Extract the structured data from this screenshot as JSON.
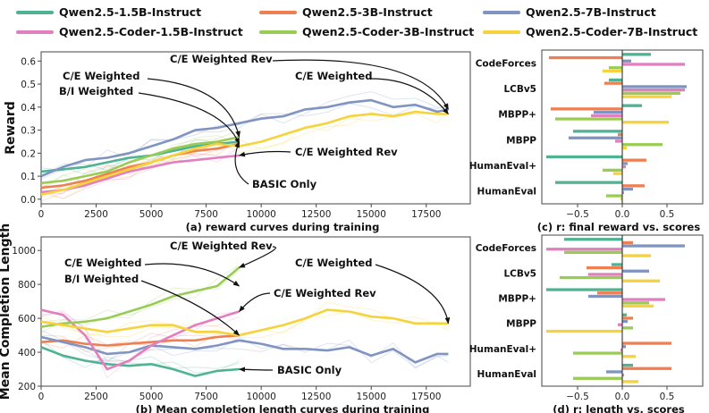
{
  "legend": [
    {
      "name": "Qwen2.5-1.5B-Instruct",
      "color": "#4fb393"
    },
    {
      "name": "Qwen2.5-3B-Instruct",
      "color": "#ee7f52"
    },
    {
      "name": "Qwen2.5-7B-Instruct",
      "color": "#8094c2"
    },
    {
      "name": "Qwen2.5-Coder-1.5B-Instruct",
      "color": "#e27fbf"
    },
    {
      "name": "Qwen2.5-Coder-3B-Instruct",
      "color": "#99cc55"
    },
    {
      "name": "Qwen2.5-Coder-7B-Instruct",
      "color": "#f6d23c"
    }
  ],
  "chart_data": [
    {
      "type": "line",
      "id": "reward",
      "caption": "(a) reward curves during training",
      "xlabel": "",
      "ylabel": "Reward",
      "xlim": [
        0,
        19500
      ],
      "ylim": [
        -0.02,
        0.64
      ],
      "xticks": [
        "0",
        "2500",
        "5000",
        "7500",
        "10000",
        "12500",
        "15000",
        "17500"
      ],
      "xtick_values": [
        0,
        2500,
        5000,
        7500,
        10000,
        12500,
        15000,
        17500
      ],
      "yticks": [
        "0.0",
        "0.1",
        "0.2",
        "0.3",
        "0.4",
        "0.5",
        "0.6"
      ],
      "ytick_values": [
        0,
        0.1,
        0.2,
        0.3,
        0.4,
        0.5,
        0.6
      ],
      "series": [
        {
          "name": "Qwen2.5-1.5B-Instruct (BASIC Only)",
          "color": "#4fb393",
          "x": [
            0,
            1000,
            2000,
            3000,
            4000,
            5000,
            6000,
            7000,
            8000,
            9000
          ],
          "y": [
            0.12,
            0.13,
            0.14,
            0.16,
            0.18,
            0.19,
            0.21,
            0.23,
            0.24,
            0.25
          ]
        },
        {
          "name": "Qwen2.5-3B-Instruct",
          "color": "#ee7f52",
          "x": [
            0,
            1000,
            2000,
            3000,
            4000,
            5000,
            6000,
            7000,
            8000,
            9000
          ],
          "y": [
            0.05,
            0.06,
            0.08,
            0.11,
            0.14,
            0.16,
            0.19,
            0.21,
            0.22,
            0.24
          ]
        },
        {
          "name": "Qwen2.5-7B-Instruct",
          "color": "#8094c2",
          "x": [
            0,
            1000,
            2000,
            3000,
            4000,
            5000,
            6000,
            7000,
            8000,
            9000,
            10000,
            11000,
            12000,
            13000,
            14000,
            15000,
            16000,
            17000,
            18000,
            18500
          ],
          "y": [
            0.1,
            0.14,
            0.17,
            0.18,
            0.2,
            0.23,
            0.26,
            0.3,
            0.31,
            0.33,
            0.35,
            0.36,
            0.39,
            0.4,
            0.42,
            0.43,
            0.4,
            0.41,
            0.38,
            0.39
          ]
        },
        {
          "name": "Qwen2.5-Coder-1.5B-Instruct",
          "color": "#e27fbf",
          "x": [
            0,
            1000,
            2000,
            3000,
            4000,
            5000,
            6000,
            7000,
            8000,
            9000
          ],
          "y": [
            0.03,
            0.04,
            0.06,
            0.09,
            0.12,
            0.14,
            0.16,
            0.17,
            0.18,
            0.19
          ]
        },
        {
          "name": "Qwen2.5-Coder-3B-Instruct",
          "color": "#99cc55",
          "x": [
            0,
            1000,
            2000,
            3000,
            4000,
            5000,
            6000,
            7000,
            8000,
            9000
          ],
          "y": [
            0.07,
            0.08,
            0.1,
            0.12,
            0.16,
            0.19,
            0.22,
            0.24,
            0.25,
            0.27
          ]
        },
        {
          "name": "Qwen2.5-Coder-7B-Instruct",
          "color": "#f6d23c",
          "x": [
            0,
            1000,
            2000,
            3000,
            4000,
            5000,
            6000,
            7000,
            8000,
            9000,
            10000,
            11000,
            12000,
            13000,
            14000,
            15000,
            16000,
            17000,
            18000,
            18500
          ],
          "y": [
            0.02,
            0.04,
            0.07,
            0.1,
            0.13,
            0.16,
            0.19,
            0.22,
            0.24,
            0.23,
            0.25,
            0.28,
            0.31,
            0.33,
            0.36,
            0.37,
            0.36,
            0.38,
            0.37,
            0.37
          ]
        }
      ],
      "annotations": [
        {
          "text": "C/E Weighted Rev",
          "target": [
            18500,
            0.39
          ]
        },
        {
          "text": "C/E Weighted",
          "target": [
            18500,
            0.37
          ]
        },
        {
          "text": "C/E Weighted",
          "target": [
            9000,
            0.27
          ]
        },
        {
          "text": "B/I Weighted",
          "target": [
            9000,
            0.24
          ]
        },
        {
          "text": "C/E Weighted Rev",
          "target": [
            9000,
            0.19
          ]
        },
        {
          "text": "BASIC Only",
          "target": [
            9000,
            0.25
          ]
        }
      ]
    },
    {
      "type": "line",
      "id": "length",
      "caption": "(b) Mean completion length curves during training",
      "xlabel": "",
      "ylabel": "Mean Completion Length",
      "xlim": [
        0,
        19500
      ],
      "ylim": [
        200,
        1080
      ],
      "xticks": [
        "0",
        "2500",
        "5000",
        "7500",
        "10000",
        "12500",
        "15000",
        "17500"
      ],
      "xtick_values": [
        0,
        2500,
        5000,
        7500,
        10000,
        12500,
        15000,
        17500
      ],
      "yticks": [
        "200",
        "400",
        "600",
        "800",
        "1000"
      ],
      "ytick_values": [
        200,
        400,
        600,
        800,
        1000
      ],
      "series": [
        {
          "name": "Qwen2.5-1.5B-Instruct (BASIC Only)",
          "color": "#4fb393",
          "x": [
            0,
            1000,
            2000,
            3000,
            4000,
            5000,
            6000,
            7000,
            8000,
            9000
          ],
          "y": [
            430,
            380,
            350,
            330,
            320,
            330,
            300,
            260,
            290,
            300
          ]
        },
        {
          "name": "Qwen2.5-3B-Instruct",
          "color": "#ee7f52",
          "x": [
            0,
            1000,
            2000,
            3000,
            4000,
            5000,
            6000,
            7000,
            8000,
            9000
          ],
          "y": [
            460,
            470,
            450,
            440,
            450,
            460,
            470,
            470,
            490,
            500
          ]
        },
        {
          "name": "Qwen2.5-7B-Instruct",
          "color": "#8094c2",
          "x": [
            0,
            1000,
            2000,
            3000,
            4000,
            5000,
            6000,
            7000,
            8000,
            9000,
            10000,
            11000,
            12000,
            13000,
            14000,
            15000,
            16000,
            17000,
            18000,
            18500
          ],
          "y": [
            490,
            460,
            430,
            390,
            400,
            440,
            430,
            420,
            440,
            470,
            450,
            420,
            420,
            410,
            430,
            380,
            420,
            340,
            390,
            390
          ]
        },
        {
          "name": "Qwen2.5-Coder-1.5B-Instruct",
          "color": "#e27fbf",
          "x": [
            0,
            1000,
            2000,
            3000,
            4000,
            5000,
            6000,
            7000,
            8000,
            9000
          ],
          "y": [
            650,
            620,
            500,
            300,
            350,
            440,
            500,
            560,
            600,
            640
          ]
        },
        {
          "name": "Qwen2.5-Coder-3B-Instruct",
          "color": "#99cc55",
          "x": [
            0,
            1000,
            2000,
            3000,
            4000,
            5000,
            6000,
            7000,
            8000,
            9000
          ],
          "y": [
            550,
            570,
            580,
            600,
            640,
            680,
            730,
            760,
            790,
            900
          ]
        },
        {
          "name": "Qwen2.5-Coder-7B-Instruct",
          "color": "#f6d23c",
          "x": [
            0,
            1000,
            2000,
            3000,
            4000,
            5000,
            6000,
            7000,
            8000,
            9000,
            10000,
            11000,
            12000,
            13000,
            14000,
            15000,
            16000,
            17000,
            18000,
            18500
          ],
          "y": [
            580,
            560,
            540,
            520,
            540,
            560,
            560,
            520,
            520,
            500,
            530,
            560,
            600,
            650,
            640,
            610,
            600,
            570,
            570,
            570
          ]
        }
      ],
      "annotations": [
        {
          "text": "C/E Weighted Rev",
          "target": [
            9000,
            900
          ]
        },
        {
          "text": "C/E Weighted",
          "target": [
            9000,
            790
          ]
        },
        {
          "text": "B/I Weighted",
          "target": [
            9000,
            500
          ]
        },
        {
          "text": "C/E Weighted Rev",
          "target": [
            9000,
            640
          ]
        },
        {
          "text": "C/E Weighted",
          "target": [
            18500,
            570
          ]
        },
        {
          "text": "BASIC Only",
          "target": [
            9000,
            300
          ]
        }
      ]
    },
    {
      "type": "bar",
      "orientation": "horizontal",
      "id": "corr-reward",
      "caption": "(c) r: final reward vs. scores",
      "xlim": [
        -0.9,
        0.9
      ],
      "xticks": [
        "−0.5",
        "0.0",
        "0.5"
      ],
      "xtick_values": [
        -0.5,
        0,
        0.5
      ],
      "categories": [
        "CodeForces",
        "LCBv5",
        "MBPP+",
        "MBPP",
        "HumanEval+",
        "HumanEval"
      ],
      "series": [
        {
          "name": "Qwen2.5-1.5B-Instruct",
          "color": "#4fb393",
          "values": [
            0.32,
            -0.15,
            0.22,
            -0.55,
            -0.85,
            -0.75
          ]
        },
        {
          "name": "Qwen2.5-3B-Instruct",
          "color": "#ee7f52",
          "values": [
            -0.82,
            -0.2,
            -0.8,
            -0.05,
            0.27,
            0.25
          ]
        },
        {
          "name": "Qwen2.5-7B-Instruct",
          "color": "#8094c2",
          "values": [
            0.1,
            0.72,
            -0.32,
            -0.6,
            0.06,
            0.12
          ]
        },
        {
          "name": "Qwen2.5-Coder-1.5B-Instruct",
          "color": "#e27fbf",
          "values": [
            0.7,
            0.7,
            -0.35,
            -0.08,
            0.04,
            0.02
          ]
        },
        {
          "name": "Qwen2.5-Coder-3B-Instruct",
          "color": "#99cc55",
          "values": [
            -0.15,
            0.65,
            -0.75,
            0.45,
            -0.22,
            -0.18
          ]
        },
        {
          "name": "Qwen2.5-Coder-7B-Instruct",
          "color": "#f6d23c",
          "values": [
            -0.22,
            0.55,
            0.52,
            0.05,
            -0.1,
            -0.02
          ]
        }
      ]
    },
    {
      "type": "bar",
      "orientation": "horizontal",
      "id": "corr-length",
      "caption": "(d) r: length vs. scores",
      "xlim": [
        -0.9,
        0.9
      ],
      "xticks": [
        "−0.5",
        "0.0",
        "0.5"
      ],
      "xtick_values": [
        -0.5,
        0,
        0.5
      ],
      "categories": [
        "CodeForces",
        "LCBv5",
        "MBPP+",
        "MBPP",
        "HumanEval+",
        "HumanEval"
      ],
      "series": [
        {
          "name": "Qwen2.5-1.5B-Instruct",
          "color": "#4fb393",
          "values": [
            -0.65,
            -0.12,
            -0.85,
            0.05,
            0.0,
            0.12
          ]
        },
        {
          "name": "Qwen2.5-3B-Instruct",
          "color": "#ee7f52",
          "values": [
            0.12,
            -0.4,
            -0.28,
            0.12,
            0.55,
            0.55
          ]
        },
        {
          "name": "Qwen2.5-7B-Instruct",
          "color": "#8094c2",
          "values": [
            0.7,
            0.3,
            -0.38,
            0.06,
            0.04,
            -0.18
          ]
        },
        {
          "name": "Qwen2.5-Coder-1.5B-Instruct",
          "color": "#e27fbf",
          "values": [
            -0.85,
            -0.38,
            0.48,
            -0.05,
            -0.02,
            0.02
          ]
        },
        {
          "name": "Qwen2.5-Coder-3B-Instruct",
          "color": "#99cc55",
          "values": [
            -0.65,
            -0.7,
            0.3,
            0.12,
            -0.55,
            -0.55
          ]
        },
        {
          "name": "Qwen2.5-Coder-7B-Instruct",
          "color": "#f6d23c",
          "values": [
            0.32,
            0.42,
            0.35,
            -0.85,
            0.15,
            0.18
          ]
        }
      ]
    }
  ]
}
